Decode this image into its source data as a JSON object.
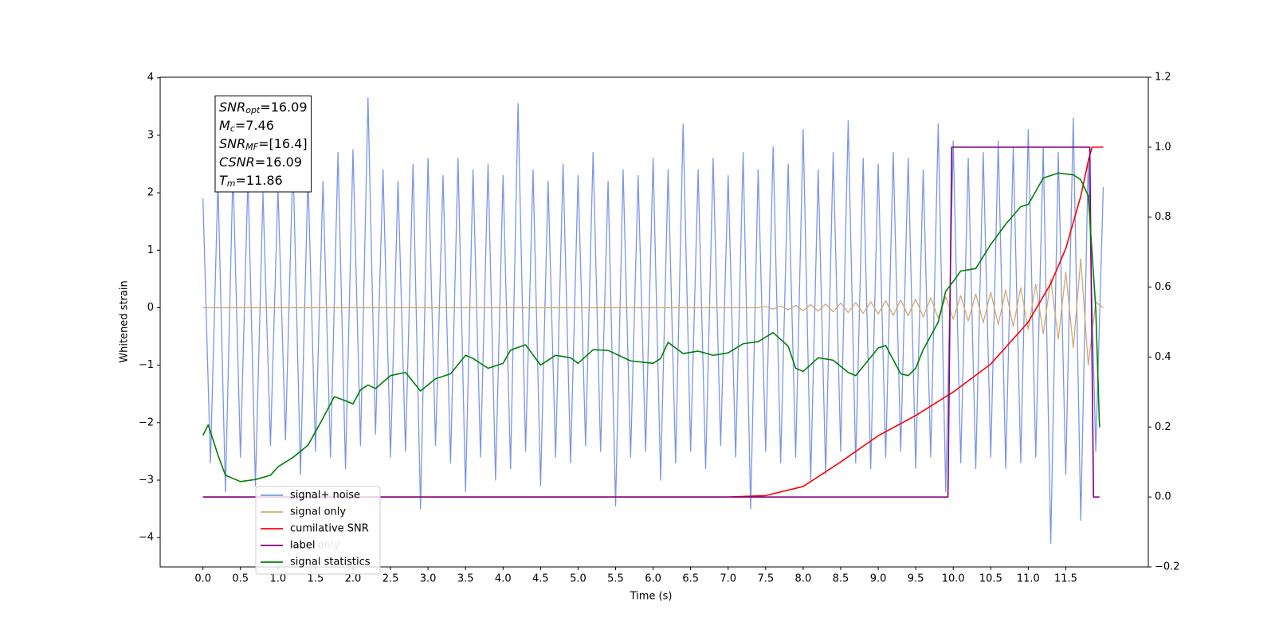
{
  "chart_data": {
    "type": "line",
    "xlabel": "Time (s)",
    "ylabel": "Whitened strain",
    "xlim": [
      -0.57,
      12.6
    ],
    "ylim": [
      -4.51,
      4.01
    ],
    "y2lim": [
      -0.2,
      1.2
    ],
    "xticks": [
      {
        "value": 0,
        "label": "0.0"
      },
      0.5,
      {
        "value": 1,
        "label": "1.0"
      },
      1.5,
      {
        "value": 2,
        "label": "2.0"
      },
      2.5,
      {
        "value": 3,
        "label": "3.0"
      },
      3.5,
      {
        "value": 4,
        "label": "4.0"
      },
      4.5,
      {
        "value": 5,
        "label": "5.0"
      },
      5.5,
      {
        "value": 6,
        "label": "6.0"
      },
      6.5,
      {
        "value": 7,
        "label": "7.0"
      },
      7.5,
      {
        "value": 8,
        "label": "8.0"
      },
      8.5,
      {
        "value": 9,
        "label": "9.0"
      },
      9.5,
      {
        "value": 10,
        "label": "10.0"
      },
      10.5,
      {
        "value": 11,
        "label": "11.0"
      },
      11.5
    ],
    "yticks": [
      {
        "value": -4,
        "label": "−4"
      },
      {
        "value": -3,
        "label": "−3"
      },
      {
        "value": -2,
        "label": "−2"
      },
      {
        "value": -1,
        "label": "−1"
      },
      0,
      1,
      2,
      3,
      4
    ],
    "y2ticks": [
      {
        "value": -0.2,
        "label": "−0.2"
      },
      {
        "value": 0,
        "label": "0.0"
      },
      0.2,
      0.4,
      0.6,
      0.8,
      {
        "value": 1,
        "label": "1.0"
      },
      1.2
    ],
    "annotation": [
      {
        "var": "SNR",
        "sub": "opt",
        "text": "=16.09"
      },
      {
        "var": "M",
        "sub": "c",
        "text": "=7.46"
      },
      {
        "var": "SNR",
        "sub": "MF",
        "text": "=[16.4]"
      },
      {
        "var": "CSNR",
        "text": "=16.09"
      },
      {
        "var": "T",
        "sub": "m",
        "text": "=11.86"
      }
    ],
    "legend_overlap_text": "label only",
    "series": [
      {
        "name": "signal+ noise",
        "color": "#7a96e8",
        "axis": "y",
        "x": [
          0,
          0.1,
          0.2,
          0.3,
          0.4,
          0.5,
          0.6,
          0.7,
          0.8,
          0.9,
          1.0,
          1.1,
          1.2,
          1.3,
          1.4,
          1.5,
          1.6,
          1.7,
          1.8,
          1.9,
          2.0,
          2.1,
          2.2,
          2.3,
          2.4,
          2.5,
          2.6,
          2.7,
          2.8,
          2.9,
          3.0,
          3.1,
          3.2,
          3.3,
          3.4,
          3.5,
          3.6,
          3.7,
          3.8,
          3.9,
          4.0,
          4.1,
          4.2,
          4.3,
          4.4,
          4.5,
          4.6,
          4.7,
          4.8,
          4.9,
          5.0,
          5.1,
          5.2,
          5.3,
          5.4,
          5.5,
          5.6,
          5.7,
          5.8,
          5.9,
          6.0,
          6.1,
          6.2,
          6.3,
          6.4,
          6.5,
          6.6,
          6.7,
          6.8,
          6.9,
          7.0,
          7.1,
          7.2,
          7.3,
          7.4,
          7.5,
          7.6,
          7.7,
          7.8,
          7.9,
          8.0,
          8.1,
          8.2,
          8.3,
          8.4,
          8.5,
          8.6,
          8.7,
          8.8,
          8.9,
          9.0,
          9.1,
          9.2,
          9.3,
          9.4,
          9.5,
          9.6,
          9.7,
          9.8,
          9.9,
          10.0,
          10.1,
          10.2,
          10.3,
          10.4,
          10.5,
          10.6,
          10.7,
          10.8,
          10.9,
          11.0,
          11.1,
          11.2,
          11.3,
          11.4,
          11.5,
          11.6,
          11.7,
          11.8,
          11.9,
          12.0
        ],
        "values": [
          1.9,
          -2.7,
          2.2,
          -3.2,
          2.4,
          -2.6,
          2.3,
          -3.1,
          2.0,
          -2.4,
          2.1,
          -2.3,
          2.6,
          -2.9,
          2.3,
          -2.5,
          2.2,
          -2.6,
          2.7,
          -2.8,
          2.75,
          -2.4,
          3.65,
          -2.2,
          2.4,
          -2.6,
          2.2,
          -2.5,
          2.5,
          -3.5,
          2.6,
          -2.4,
          2.3,
          -2.7,
          2.6,
          -3.2,
          2.4,
          -2.6,
          2.5,
          -3.0,
          2.3,
          -2.8,
          3.55,
          -2.5,
          2.4,
          -3.1,
          2.2,
          -2.6,
          2.5,
          -2.7,
          2.3,
          -2.4,
          2.7,
          -2.5,
          2.2,
          -3.45,
          2.4,
          -2.6,
          2.3,
          -2.5,
          2.6,
          -3.0,
          2.4,
          -2.7,
          3.2,
          -2.5,
          2.4,
          -2.8,
          2.6,
          -2.4,
          2.3,
          -2.6,
          2.7,
          -3.5,
          2.4,
          -2.5,
          2.8,
          -2.7,
          2.5,
          -2.6,
          3.1,
          -3.0,
          2.4,
          -2.9,
          2.7,
          -2.5,
          3.25,
          -2.7,
          2.6,
          -2.8,
          2.5,
          -2.6,
          2.7,
          -2.5,
          2.6,
          -2.8,
          2.4,
          -2.6,
          3.2,
          -3.2,
          2.9,
          -2.7,
          2.6,
          -2.8,
          2.7,
          -2.6,
          2.9,
          -2.8,
          2.8,
          -2.7,
          3.1,
          -2.6,
          2.8,
          -4.1,
          2.7,
          -2.9,
          3.3,
          -3.7,
          2.6,
          -2.5,
          2.1
        ]
      },
      {
        "name": "signal only",
        "color": "#d7a86e",
        "axis": "y",
        "x": [
          0,
          7.4,
          7.5,
          7.6,
          7.7,
          7.8,
          7.9,
          8.0,
          8.1,
          8.2,
          8.3,
          8.4,
          8.5,
          8.6,
          8.7,
          8.8,
          8.9,
          9.0,
          9.1,
          9.2,
          9.3,
          9.4,
          9.5,
          9.6,
          9.7,
          9.8,
          9.9,
          10.0,
          10.1,
          10.2,
          10.3,
          10.4,
          10.5,
          10.6,
          10.7,
          10.8,
          10.9,
          11.0,
          11.1,
          11.2,
          11.3,
          11.4,
          11.5,
          11.6,
          11.7,
          11.8,
          11.9,
          12.0
        ],
        "values": [
          0,
          0,
          0.02,
          -0.025,
          0.03,
          -0.035,
          0.04,
          -0.05,
          0.055,
          -0.06,
          0.065,
          -0.07,
          0.08,
          -0.085,
          0.09,
          -0.1,
          0.105,
          -0.11,
          0.12,
          -0.13,
          0.135,
          -0.14,
          0.15,
          -0.16,
          0.17,
          -0.18,
          0.19,
          -0.2,
          0.21,
          -0.23,
          0.24,
          -0.26,
          0.27,
          -0.29,
          0.31,
          -0.33,
          0.35,
          -0.38,
          0.41,
          -0.45,
          0.5,
          -0.55,
          0.62,
          -0.7,
          0.85,
          -1.0,
          0.1,
          0
        ]
      },
      {
        "name": "cumilative SNR",
        "color": "#ff0000",
        "axis": "y2",
        "x": [
          0,
          7.0,
          7.5,
          8.0,
          8.5,
          9.0,
          9.5,
          10.0,
          10.5,
          11.0,
          11.3,
          11.5,
          11.7,
          11.8,
          11.85,
          12.0
        ],
        "values": [
          0,
          0,
          0.004,
          0.03,
          0.1,
          0.175,
          0.233,
          0.3,
          0.38,
          0.5,
          0.61,
          0.71,
          0.86,
          0.96,
          1.0,
          1.0
        ]
      },
      {
        "name": "label",
        "color": "#800080",
        "axis": "y2",
        "x": [
          0,
          9.93,
          9.98,
          11.82,
          11.87,
          11.95
        ],
        "values": [
          0,
          0,
          1,
          1,
          0,
          0
        ]
      },
      {
        "name": "signal statistics",
        "color": "#008000",
        "axis": "y2",
        "x": [
          0,
          0.07,
          0.2,
          0.3,
          0.5,
          0.7,
          0.9,
          1.0,
          1.2,
          1.4,
          1.6,
          1.75,
          1.9,
          2.0,
          2.1,
          2.2,
          2.3,
          2.5,
          2.7,
          2.9,
          3.1,
          3.3,
          3.5,
          3.6,
          3.8,
          4.0,
          4.1,
          4.3,
          4.5,
          4.7,
          4.9,
          5.0,
          5.2,
          5.4,
          5.7,
          6.0,
          6.1,
          6.2,
          6.4,
          6.6,
          6.8,
          7.0,
          7.2,
          7.4,
          7.6,
          7.8,
          7.9,
          8.0,
          8.2,
          8.4,
          8.6,
          8.7,
          8.8,
          9.0,
          9.1,
          9.3,
          9.4,
          9.5,
          9.6,
          9.8,
          9.9,
          10.0,
          10.1,
          10.3,
          10.5,
          10.7,
          10.9,
          11.0,
          11.2,
          11.4,
          11.6,
          11.7,
          11.8,
          11.9,
          11.95
        ],
        "values": [
          0.176,
          0.206,
          0.12,
          0.062,
          0.044,
          0.05,
          0.062,
          0.086,
          0.113,
          0.148,
          0.225,
          0.287,
          0.275,
          0.266,
          0.306,
          0.32,
          0.31,
          0.347,
          0.356,
          0.303,
          0.338,
          0.352,
          0.405,
          0.396,
          0.368,
          0.382,
          0.42,
          0.435,
          0.377,
          0.405,
          0.398,
          0.382,
          0.421,
          0.419,
          0.389,
          0.382,
          0.396,
          0.442,
          0.41,
          0.417,
          0.405,
          0.412,
          0.438,
          0.444,
          0.47,
          0.431,
          0.368,
          0.359,
          0.398,
          0.391,
          0.356,
          0.347,
          0.373,
          0.426,
          0.433,
          0.352,
          0.347,
          0.368,
          0.421,
          0.5,
          0.588,
          0.616,
          0.646,
          0.653,
          0.722,
          0.78,
          0.83,
          0.836,
          0.912,
          0.926,
          0.921,
          0.907,
          0.861,
          0.537,
          0.199
        ]
      }
    ]
  }
}
